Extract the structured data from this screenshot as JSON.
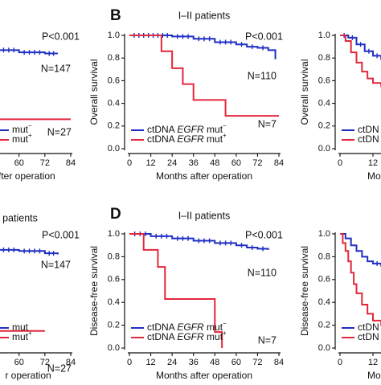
{
  "figure": {
    "colors": {
      "wildtype": "#1f2fc4",
      "mutant": "#e3273b",
      "axis": "#111111"
    },
    "panels": [
      {
        "id": "A",
        "letter": "",
        "title": "",
        "ylabel": "",
        "xlabel": "after operation",
        "xticks": [
          "",
          "",
          "",
          "48",
          "60",
          "72",
          "84"
        ],
        "yticks": [],
        "pvalue": "P<0.001",
        "n_wild": "N=147",
        "n_mut": "N=27",
        "legend": [
          {
            "prefix": "",
            "gene": "",
            "suffix": "mut",
            "sup": "−"
          },
          {
            "prefix": "",
            "gene": "",
            "suffix": "mut",
            "sup": "+"
          }
        ]
      },
      {
        "id": "B",
        "letter": "B",
        "title": "I–II patients",
        "ylabel": "Overall survival",
        "xlabel": "Months after operation",
        "xticks": [
          "0",
          "12",
          "24",
          "36",
          "48",
          "60",
          "72",
          "84"
        ],
        "yticks": [
          "0.0",
          "0.2",
          "0.4",
          "0.6",
          "0.8",
          "1.0"
        ],
        "pvalue": "P<0.001",
        "n_wild": "N=110",
        "n_mut": "N=7",
        "legend": [
          {
            "prefix": "ctDNA ",
            "gene": "EGFR",
            "suffix": " mut",
            "sup": "−"
          },
          {
            "prefix": "ctDNA ",
            "gene": "EGFR",
            "suffix": " mut",
            "sup": "+"
          }
        ]
      },
      {
        "id": "C",
        "letter": "",
        "title": "",
        "ylabel": "Overall survival",
        "xlabel": "Mo",
        "xticks": [
          "0",
          "12"
        ],
        "yticks": [
          "0.0",
          "0.2",
          "0.4",
          "0.6",
          "0.8",
          "1.0"
        ],
        "pvalue": "",
        "n_wild": "",
        "n_mut": "",
        "legend": [
          {
            "prefix": "ctDN",
            "gene": "",
            "suffix": "",
            "sup": ""
          },
          {
            "prefix": "ctDN",
            "gene": "",
            "suffix": "",
            "sup": ""
          }
        ]
      },
      {
        "id": "D",
        "letter": "D",
        "title": "I–II patients",
        "ylabel": "Disease-free survival",
        "xlabel": "Months after operation",
        "xticks": [
          "0",
          "12",
          "24",
          "36",
          "48",
          "60",
          "72",
          "84"
        ],
        "yticks": [
          "0.0",
          "0.2",
          "0.4",
          "0.6",
          "0.8",
          "1.0"
        ],
        "pvalue": "P<0.001",
        "n_wild": "N=110",
        "n_mut": "N=7",
        "legend": [
          {
            "prefix": "ctDNA ",
            "gene": "EGFR",
            "suffix": " mut",
            "sup": "−"
          },
          {
            "prefix": "ctDNA ",
            "gene": "EGFR",
            "suffix": " mut",
            "sup": "+"
          }
        ]
      },
      {
        "id": "E",
        "letter": "",
        "title": "patients",
        "ylabel": "",
        "xlabel": "r operation",
        "xticks": [
          "",
          "",
          "48",
          "60",
          "72",
          "84"
        ],
        "yticks": [],
        "pvalue": "P<0.001",
        "n_wild": "N=147",
        "n_mut": "N=27",
        "legend": [
          {
            "prefix": "",
            "gene": "",
            "suffix": "mut",
            "sup": ""
          },
          {
            "prefix": "",
            "gene": "",
            "suffix": "mut",
            "sup": "+"
          }
        ]
      },
      {
        "id": "F",
        "letter": "",
        "title": "",
        "ylabel": "Disease-free survival",
        "xlabel": "Mo",
        "xticks": [
          "0",
          "12"
        ],
        "yticks": [
          "0.0",
          "0.2",
          "0.4",
          "0.6",
          "0.8",
          "1.0"
        ],
        "pvalue": "",
        "n_wild": "",
        "n_mut": "",
        "legend": [
          {
            "prefix": "ctDN",
            "gene": "",
            "suffix": "",
            "sup": ""
          },
          {
            "prefix": "ctDN",
            "gene": "",
            "suffix": "",
            "sup": ""
          }
        ]
      }
    ]
  },
  "chart_data": [
    {
      "panel": "A",
      "type": "line",
      "step": true,
      "xlim": [
        0,
        84
      ],
      "ylim": [
        0,
        1
      ],
      "series": [
        {
          "group": "wildtype",
          "x": [
            24,
            36,
            48,
            60,
            72,
            78
          ],
          "y": [
            0.91,
            0.89,
            0.87,
            0.85,
            0.84,
            0.84
          ]
        },
        {
          "group": "mutant",
          "x": [
            30,
            84
          ],
          "y": [
            0.26,
            0.26
          ]
        }
      ]
    },
    {
      "panel": "B",
      "type": "line",
      "step": true,
      "xlim": [
        0,
        84
      ],
      "ylim": [
        0,
        1
      ],
      "series": [
        {
          "group": "wildtype",
          "x": [
            0,
            24,
            36,
            48,
            60,
            66,
            72,
            78,
            82
          ],
          "y": [
            1.0,
            0.99,
            0.97,
            0.94,
            0.92,
            0.9,
            0.89,
            0.87,
            0.79
          ]
        },
        {
          "group": "mutant",
          "x": [
            0,
            14,
            18,
            24,
            30,
            36,
            54,
            84
          ],
          "y": [
            1.0,
            1.0,
            0.86,
            0.71,
            0.57,
            0.43,
            0.29,
            0.29
          ]
        }
      ]
    },
    {
      "panel": "C",
      "type": "line",
      "step": true,
      "xlim": [
        0,
        24
      ],
      "ylim": [
        0,
        1
      ],
      "series": [
        {
          "group": "wildtype",
          "x": [
            0,
            3,
            6,
            9,
            12,
            15,
            18
          ],
          "y": [
            1.0,
            0.98,
            0.92,
            0.86,
            0.82,
            0.79,
            0.77
          ]
        },
        {
          "group": "mutant",
          "x": [
            0,
            2,
            4,
            6,
            8,
            10,
            12,
            15,
            18
          ],
          "y": [
            1.0,
            0.95,
            0.85,
            0.76,
            0.68,
            0.62,
            0.58,
            0.55,
            0.53
          ]
        }
      ]
    },
    {
      "panel": "D",
      "type": "line",
      "step": true,
      "xlim": [
        0,
        84
      ],
      "ylim": [
        0,
        1
      ],
      "series": [
        {
          "group": "wildtype",
          "x": [
            0,
            12,
            24,
            36,
            48,
            60,
            66,
            72,
            78
          ],
          "y": [
            1.0,
            0.98,
            0.96,
            0.94,
            0.92,
            0.9,
            0.88,
            0.87,
            0.86
          ]
        },
        {
          "group": "mutant",
          "x": [
            0,
            8,
            12,
            16,
            20,
            36,
            48,
            52
          ],
          "y": [
            1.0,
            0.86,
            0.86,
            0.71,
            0.43,
            0.43,
            0.14,
            0.0
          ]
        }
      ]
    },
    {
      "panel": "E",
      "type": "line",
      "step": true,
      "xlim": [
        0,
        84
      ],
      "ylim": [
        0,
        1
      ],
      "series": [
        {
          "group": "wildtype",
          "x": [
            0,
            12,
            24,
            36,
            48,
            60,
            72,
            78
          ],
          "y": [
            0.95,
            0.92,
            0.9,
            0.88,
            0.86,
            0.85,
            0.83,
            0.82
          ]
        },
        {
          "group": "mutant",
          "x": [
            0,
            24,
            48,
            72
          ],
          "y": [
            0.18,
            0.16,
            0.15,
            0.15
          ]
        }
      ]
    },
    {
      "panel": "F",
      "type": "line",
      "step": true,
      "xlim": [
        0,
        24
      ],
      "ylim": [
        0,
        1
      ],
      "series": [
        {
          "group": "wildtype",
          "x": [
            0,
            2,
            4,
            6,
            8,
            10,
            12,
            15,
            18
          ],
          "y": [
            1.0,
            0.96,
            0.9,
            0.85,
            0.8,
            0.76,
            0.74,
            0.72,
            0.7
          ]
        },
        {
          "group": "mutant",
          "x": [
            0,
            1,
            2,
            3,
            4,
            5,
            6,
            8,
            10,
            12,
            15,
            18
          ],
          "y": [
            1.0,
            0.92,
            0.85,
            0.76,
            0.66,
            0.56,
            0.48,
            0.38,
            0.3,
            0.24,
            0.2,
            0.18
          ]
        }
      ]
    }
  ]
}
